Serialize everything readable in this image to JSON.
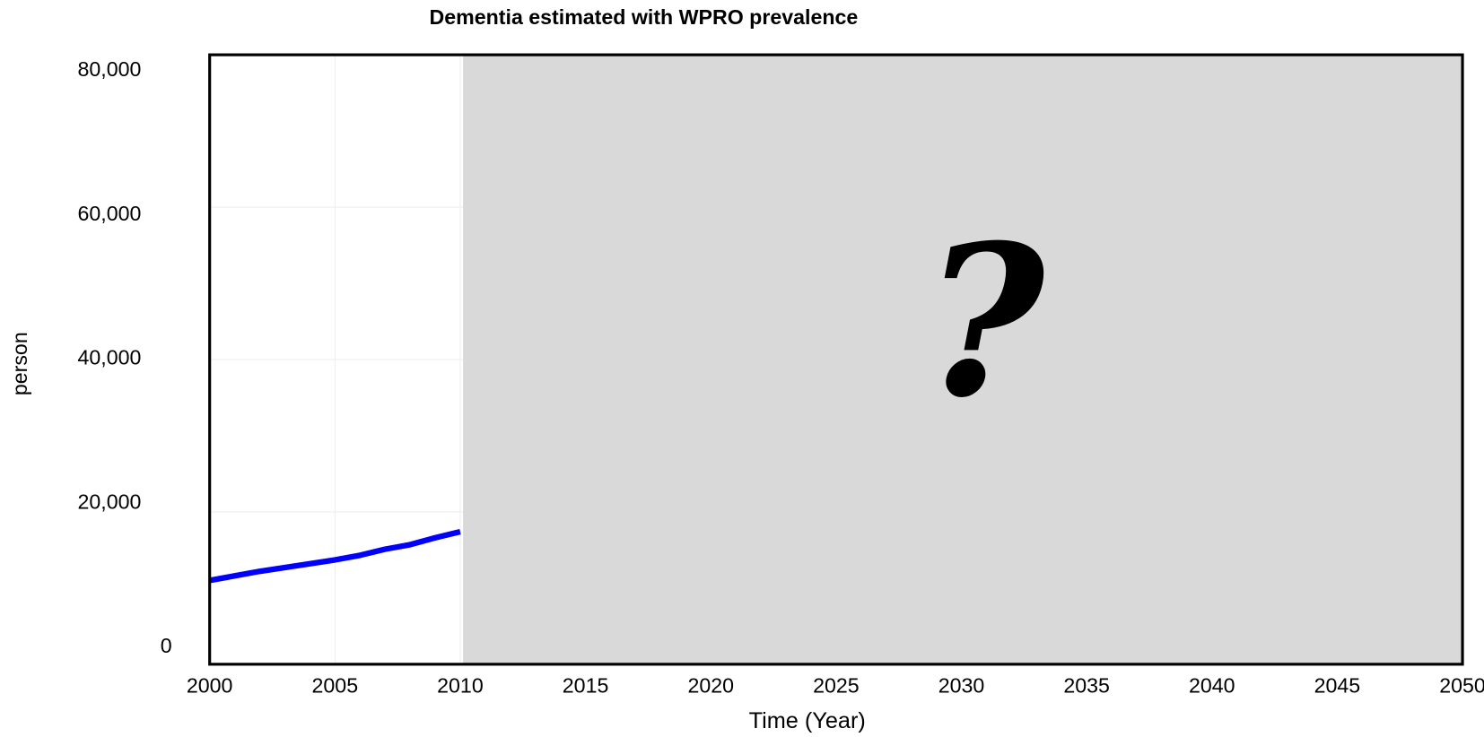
{
  "chart_data": {
    "type": "line",
    "title": "Dementia estimated with WPRO prevalence",
    "xlabel": "Time (Year)",
    "ylabel": "person",
    "x": [
      2000,
      2001,
      2002,
      2003,
      2004,
      2005,
      2006,
      2007,
      2008,
      2009,
      2010
    ],
    "series": [
      {
        "color": "#0000ff",
        "values": [
          11000,
          11600,
          12200,
          12700,
          13200,
          13700,
          14300,
          15100,
          15700,
          16600,
          17400
        ]
      }
    ],
    "xlim": [
      2000,
      2050
    ],
    "xticks": [
      2000,
      2005,
      2010,
      2015,
      2020,
      2025,
      2030,
      2035,
      2040,
      2045,
      2050
    ],
    "ylim": [
      0,
      80000
    ],
    "yticks": [
      0,
      {
        "value": 20000,
        "label": "20,000"
      },
      {
        "value": 40000,
        "label": "40,000"
      },
      {
        "value": 60000,
        "label": "60,000"
      },
      {
        "value": 80000,
        "label": "80,000"
      }
    ],
    "grid": true,
    "annotation": "?"
  }
}
